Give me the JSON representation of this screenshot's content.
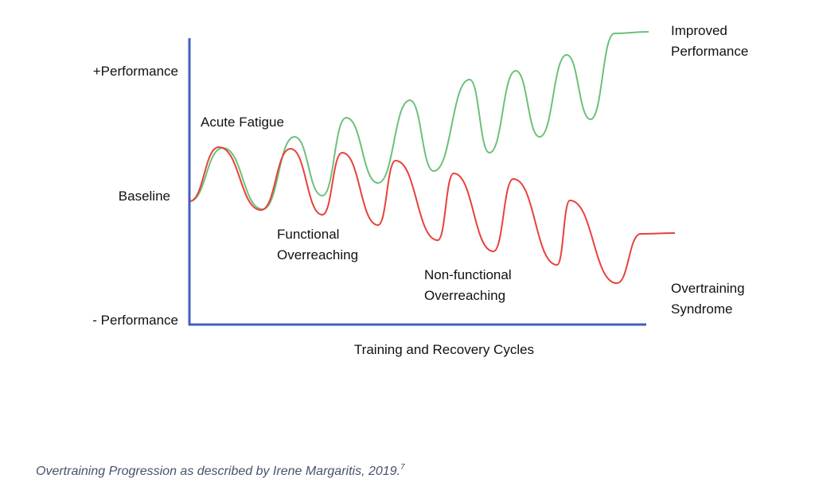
{
  "y_axis_labels": [
    "+Performance",
    "Baseline",
    "- Performance"
  ],
  "x_axis_label": "Training and Recovery Cycles",
  "annotations": {
    "acute_fatigue": [
      "Acute Fatigue"
    ],
    "functional_overreaching": [
      "Functional",
      "Overreaching"
    ],
    "non_functional_overreaching": [
      "Non-functional",
      "Overreaching"
    ],
    "improved_performance": [
      "Improved",
      "Performance"
    ],
    "overtraining_syndrome": [
      "Overtraining",
      "Syndrome"
    ]
  },
  "caption": {
    "text": "Overtraining Progression as described by Irene Margaritis, 2019.",
    "superscript": "7"
  }
}
